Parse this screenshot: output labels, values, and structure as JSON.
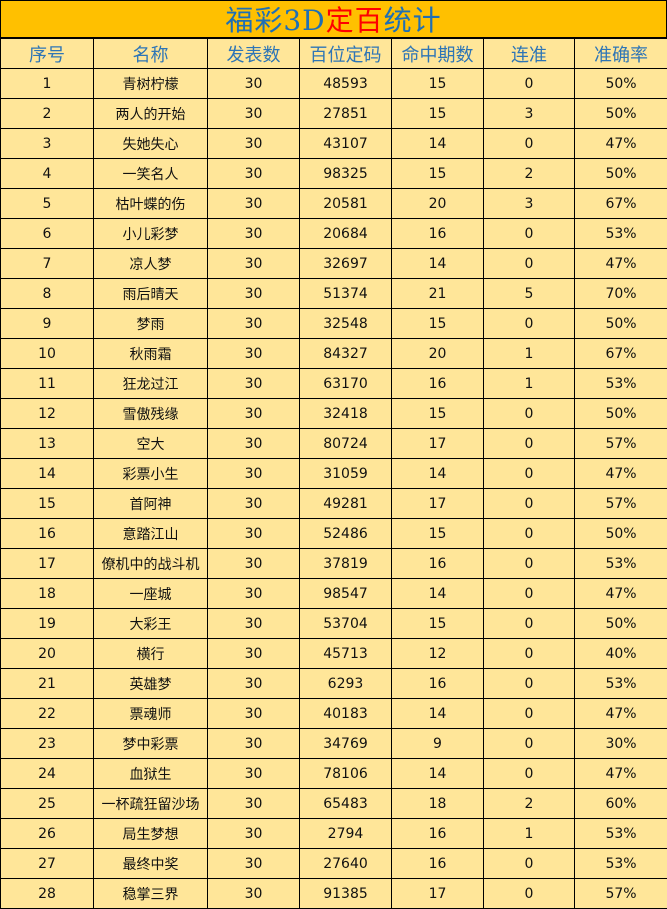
{
  "title": {
    "part1": "福彩3D",
    "part2": "定百",
    "part3": "统计"
  },
  "colors": {
    "title_bg": "#FFC000",
    "table_bg": "#FFE699",
    "header_text": "#2E75B6",
    "title_highlight": "#FF0000"
  },
  "columns": [
    "序号",
    "名称",
    "发表数",
    "百位定码",
    "命中期数",
    "连准",
    "准确率"
  ],
  "rows": [
    [
      "1",
      "青树柠檬",
      "30",
      "48593",
      "15",
      "0",
      "50%"
    ],
    [
      "2",
      "两人的开始",
      "30",
      "27851",
      "15",
      "3",
      "50%"
    ],
    [
      "3",
      "失她失心",
      "30",
      "43107",
      "14",
      "0",
      "47%"
    ],
    [
      "4",
      "一笑名人",
      "30",
      "98325",
      "15",
      "2",
      "50%"
    ],
    [
      "5",
      "枯叶蝶的伤",
      "30",
      "20581",
      "20",
      "3",
      "67%"
    ],
    [
      "6",
      "小儿彩梦",
      "30",
      "20684",
      "16",
      "0",
      "53%"
    ],
    [
      "7",
      "凉人梦",
      "30",
      "32697",
      "14",
      "0",
      "47%"
    ],
    [
      "8",
      "雨后晴天",
      "30",
      "51374",
      "21",
      "5",
      "70%"
    ],
    [
      "9",
      "梦雨",
      "30",
      "32548",
      "15",
      "0",
      "50%"
    ],
    [
      "10",
      "秋雨霜",
      "30",
      "84327",
      "20",
      "1",
      "67%"
    ],
    [
      "11",
      "狂龙过江",
      "30",
      "63170",
      "16",
      "1",
      "53%"
    ],
    [
      "12",
      "雪傲残缘",
      "30",
      "32418",
      "15",
      "0",
      "50%"
    ],
    [
      "13",
      "空大",
      "30",
      "80724",
      "17",
      "0",
      "57%"
    ],
    [
      "14",
      "彩票小生",
      "30",
      "31059",
      "14",
      "0",
      "47%"
    ],
    [
      "15",
      "首阿神",
      "30",
      "49281",
      "17",
      "0",
      "57%"
    ],
    [
      "16",
      "意踏江山",
      "30",
      "52486",
      "15",
      "0",
      "50%"
    ],
    [
      "17",
      "僚机中的战斗机",
      "30",
      "37819",
      "16",
      "0",
      "53%"
    ],
    [
      "18",
      "一座城",
      "30",
      "98547",
      "14",
      "0",
      "47%"
    ],
    [
      "19",
      "大彩王",
      "30",
      "53704",
      "15",
      "0",
      "50%"
    ],
    [
      "20",
      "横行",
      "30",
      "45713",
      "12",
      "0",
      "40%"
    ],
    [
      "21",
      "英雄梦",
      "30",
      "6293",
      "16",
      "0",
      "53%"
    ],
    [
      "22",
      "票魂师",
      "30",
      "40183",
      "14",
      "0",
      "47%"
    ],
    [
      "23",
      "梦中彩票",
      "30",
      "34769",
      "9",
      "0",
      "30%"
    ],
    [
      "24",
      "血狱生",
      "30",
      "78106",
      "14",
      "0",
      "47%"
    ],
    [
      "25",
      "一杯疏狂留沙场",
      "30",
      "65483",
      "18",
      "2",
      "60%"
    ],
    [
      "26",
      "局生梦想",
      "30",
      "2794",
      "16",
      "1",
      "53%"
    ],
    [
      "27",
      "最终中奖",
      "30",
      "27640",
      "16",
      "0",
      "53%"
    ],
    [
      "28",
      "稳掌三界",
      "30",
      "91385",
      "17",
      "0",
      "57%"
    ]
  ]
}
